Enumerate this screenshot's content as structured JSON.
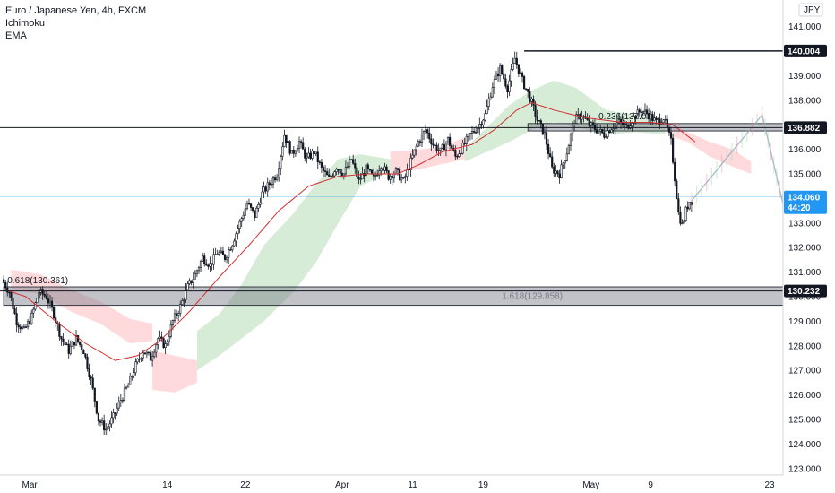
{
  "legend": {
    "symbol_title": "Euro / Japanese Yen, 4h, FXCM",
    "indicator_1": "Ichimoku",
    "indicator_2": "EMA"
  },
  "colors": {
    "candle": "#131722",
    "ema": "#d32f2f",
    "cloud_bull": "#c8e6c9",
    "cloud_bear": "#ffcdd2",
    "zone_fill": "#787b86",
    "zone_border": "#363a45",
    "current_price": "#2196f3",
    "tag_black": "#131722",
    "axis_line": "#d1d4dc",
    "projection": "#9598a1"
  },
  "chart_data": {
    "type": "candlestick",
    "currency_label": "JPY",
    "ylim": [
      122.6,
      141.9
    ],
    "y_ticks": [
      123,
      124,
      125,
      126,
      127,
      128,
      129,
      130,
      131,
      132,
      133,
      134,
      135,
      136,
      137,
      138,
      139,
      140,
      141
    ],
    "y_tick_labels": [
      "123.000",
      "124.000",
      "125.000",
      "126.000",
      "127.000",
      "128.000",
      "129.000",
      "130.000",
      "131.000",
      "132.000",
      "133.000",
      "134.000",
      "135.000",
      "136.000",
      "137.000",
      "138.000",
      "139.000",
      "140.000",
      "141.000"
    ],
    "x_ticks": [
      {
        "label": "Mar",
        "t": 1
      },
      {
        "label": "14",
        "t": 38
      },
      {
        "label": "22",
        "t": 59
      },
      {
        "label": "Apr",
        "t": 85
      },
      {
        "label": "11",
        "t": 104
      },
      {
        "label": "19",
        "t": 123
      },
      {
        "label": "May",
        "t": 152
      },
      {
        "label": "9",
        "t": 168
      },
      {
        "label": "23",
        "t": 200
      }
    ],
    "t_range": [
      -6,
      205
    ],
    "price_anchors": [
      [
        -6,
        130.7
      ],
      [
        -4,
        130.2
      ],
      [
        -2,
        129.0
      ],
      [
        0,
        128.6
      ],
      [
        2,
        129.2
      ],
      [
        4,
        130.2
      ],
      [
        6,
        130.0
      ],
      [
        8,
        129.3
      ],
      [
        10,
        128.3
      ],
      [
        12,
        127.8
      ],
      [
        14,
        128.3
      ],
      [
        16,
        127.8
      ],
      [
        18,
        126.6
      ],
      [
        20,
        125.0
      ],
      [
        22,
        124.6
      ],
      [
        24,
        125.1
      ],
      [
        26,
        125.8
      ],
      [
        28,
        126.4
      ],
      [
        30,
        127.2
      ],
      [
        32,
        127.8
      ],
      [
        34,
        127.5
      ],
      [
        36,
        128.3
      ],
      [
        38,
        128.0
      ],
      [
        40,
        129.0
      ],
      [
        42,
        129.6
      ],
      [
        44,
        130.4
      ],
      [
        46,
        130.9
      ],
      [
        48,
        131.6
      ],
      [
        50,
        131.3
      ],
      [
        52,
        131.8
      ],
      [
        54,
        131.6
      ],
      [
        56,
        132.2
      ],
      [
        58,
        133.0
      ],
      [
        60,
        133.8
      ],
      [
        62,
        133.3
      ],
      [
        64,
        134.2
      ],
      [
        66,
        134.6
      ],
      [
        68,
        135.0
      ],
      [
        70,
        136.6
      ],
      [
        72,
        135.8
      ],
      [
        74,
        136.3
      ],
      [
        76,
        135.6
      ],
      [
        78,
        135.9
      ],
      [
        80,
        135.2
      ],
      [
        82,
        134.8
      ],
      [
        84,
        135.3
      ],
      [
        86,
        135.0
      ],
      [
        88,
        135.6
      ],
      [
        90,
        134.7
      ],
      [
        92,
        135.2
      ],
      [
        94,
        134.8
      ],
      [
        96,
        135.4
      ],
      [
        98,
        134.9
      ],
      [
        100,
        135.1
      ],
      [
        102,
        134.7
      ],
      [
        104,
        135.5
      ],
      [
        106,
        136.3
      ],
      [
        108,
        136.8
      ],
      [
        110,
        136.2
      ],
      [
        112,
        135.9
      ],
      [
        114,
        136.4
      ],
      [
        116,
        135.7
      ],
      [
        118,
        136.1
      ],
      [
        120,
        136.6
      ],
      [
        122,
        136.9
      ],
      [
        124,
        137.4
      ],
      [
        126,
        138.6
      ],
      [
        128,
        139.3
      ],
      [
        130,
        138.5
      ],
      [
        132,
        139.7
      ],
      [
        134,
        138.8
      ],
      [
        136,
        138.1
      ],
      [
        138,
        137.2
      ],
      [
        140,
        136.6
      ],
      [
        142,
        135.2
      ],
      [
        144,
        135.0
      ],
      [
        146,
        135.9
      ],
      [
        148,
        137.2
      ],
      [
        150,
        137.4
      ],
      [
        152,
        137.0
      ],
      [
        154,
        136.8
      ],
      [
        156,
        136.6
      ],
      [
        158,
        136.9
      ],
      [
        160,
        137.1
      ],
      [
        162,
        136.9
      ],
      [
        164,
        137.3
      ],
      [
        166,
        137.6
      ],
      [
        168,
        137.4
      ],
      [
        170,
        137.1
      ],
      [
        172,
        137.3
      ],
      [
        174,
        136.3
      ],
      [
        176,
        133.4
      ],
      [
        177,
        132.9
      ],
      [
        178,
        133.5
      ],
      [
        179,
        133.9
      ]
    ],
    "ema_anchors": [
      [
        -6,
        130.3
      ],
      [
        0,
        130.0
      ],
      [
        8,
        129.0
      ],
      [
        16,
        128.1
      ],
      [
        24,
        127.4
      ],
      [
        30,
        127.6
      ],
      [
        36,
        128.2
      ],
      [
        44,
        129.4
      ],
      [
        52,
        130.8
      ],
      [
        60,
        132.1
      ],
      [
        68,
        133.5
      ],
      [
        76,
        134.5
      ],
      [
        84,
        134.9
      ],
      [
        92,
        135.0
      ],
      [
        100,
        135.0
      ],
      [
        106,
        135.4
      ],
      [
        112,
        135.9
      ],
      [
        120,
        136.2
      ],
      [
        126,
        136.8
      ],
      [
        132,
        137.6
      ],
      [
        136,
        137.9
      ],
      [
        142,
        137.6
      ],
      [
        150,
        137.3
      ],
      [
        160,
        137.1
      ],
      [
        168,
        137.1
      ],
      [
        174,
        137.0
      ],
      [
        180,
        136.3
      ]
    ],
    "cloud_bear_regions": [
      {
        "upper": [
          [
            -4,
            131.1
          ],
          [
            4,
            130.9
          ],
          [
            12,
            130.3
          ],
          [
            20,
            129.8
          ],
          [
            28,
            129.1
          ],
          [
            34,
            128.9
          ]
        ],
        "lower": [
          [
            -4,
            130.3
          ],
          [
            4,
            130.1
          ],
          [
            12,
            129.4
          ],
          [
            20,
            128.9
          ],
          [
            28,
            128.1
          ],
          [
            34,
            128.2
          ]
        ]
      },
      {
        "upper": [
          [
            34,
            127.8
          ],
          [
            40,
            127.6
          ],
          [
            46,
            127.4
          ]
        ],
        "lower": [
          [
            34,
            126.2
          ],
          [
            40,
            126.1
          ],
          [
            46,
            126.5
          ]
        ]
      },
      {
        "upper": [
          [
            98,
            135.9
          ],
          [
            106,
            136.0
          ],
          [
            112,
            136.1
          ],
          [
            118,
            136.5
          ]
        ],
        "lower": [
          [
            98,
            135.0
          ],
          [
            106,
            135.2
          ],
          [
            112,
            135.4
          ],
          [
            118,
            135.6
          ]
        ]
      },
      {
        "upper": [
          [
            174,
            137.0
          ],
          [
            178,
            136.7
          ],
          [
            184,
            136.3
          ],
          [
            190,
            136.0
          ],
          [
            195,
            135.5
          ]
        ],
        "lower": [
          [
            174,
            136.5
          ],
          [
            178,
            136.3
          ],
          [
            184,
            135.7
          ],
          [
            190,
            135.3
          ],
          [
            195,
            135.0
          ]
        ]
      }
    ],
    "cloud_bull_regions": [
      {
        "upper": [
          [
            46,
            128.6
          ],
          [
            52,
            129.3
          ],
          [
            58,
            130.5
          ],
          [
            64,
            132.1
          ],
          [
            72,
            133.4
          ],
          [
            78,
            134.6
          ],
          [
            84,
            135.6
          ],
          [
            90,
            135.8
          ],
          [
            98,
            135.6
          ]
        ],
        "lower": [
          [
            46,
            127.0
          ],
          [
            52,
            127.6
          ],
          [
            58,
            128.3
          ],
          [
            64,
            129.0
          ],
          [
            72,
            130.2
          ],
          [
            78,
            131.4
          ],
          [
            84,
            133.0
          ],
          [
            90,
            134.5
          ],
          [
            98,
            135.1
          ]
        ]
      },
      {
        "upper": [
          [
            118,
            136.0
          ],
          [
            124,
            136.9
          ],
          [
            130,
            137.8
          ],
          [
            136,
            138.4
          ],
          [
            142,
            138.8
          ],
          [
            148,
            138.5
          ],
          [
            156,
            137.6
          ],
          [
            164,
            137.4
          ],
          [
            172,
            137.1
          ]
        ],
        "lower": [
          [
            118,
            135.5
          ],
          [
            124,
            135.9
          ],
          [
            130,
            136.3
          ],
          [
            136,
            136.8
          ],
          [
            142,
            137.1
          ],
          [
            148,
            136.9
          ],
          [
            156,
            136.6
          ],
          [
            164,
            136.7
          ],
          [
            172,
            136.6
          ]
        ]
      }
    ],
    "projection": {
      "points": [
        [
          179,
          133.9
        ],
        [
          198,
          137.4
        ],
        [
          209,
          130.3
        ]
      ]
    },
    "levels": [
      {
        "price": 140.004,
        "label": "140.004",
        "t_from": 134
      },
      {
        "price": 136.882,
        "label": "136.882"
      },
      {
        "price": 130.232,
        "label": "130.232"
      }
    ],
    "current_price": {
      "price": 134.06,
      "label": "134.060",
      "countdown": "44:20"
    },
    "zones": [
      {
        "top": 137.05,
        "bottom": 136.75,
        "t_from": 135
      },
      {
        "top": 130.4,
        "bottom": 129.65,
        "t_from": -6
      }
    ],
    "annotations": [
      {
        "text": "0.618(130.361)",
        "t": -5,
        "price": 130.55,
        "color": "#131722"
      },
      {
        "text": "1.618(129.858)",
        "t": 128,
        "price": 129.9,
        "color": "#787b86"
      },
      {
        "text": "0.236(137.07)",
        "t": 154,
        "price": 137.22,
        "color": "#131722"
      }
    ]
  }
}
